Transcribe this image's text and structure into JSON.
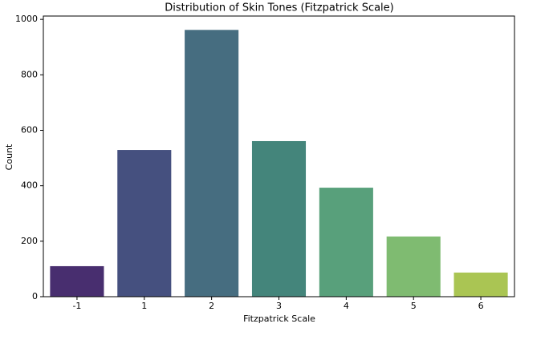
{
  "chart_data": {
    "type": "bar",
    "title": "Distribution of Skin Tones (Fitzpatrick Scale)",
    "x_label": "Fitzpatrick Scale",
    "y_label": "Count",
    "categories": [
      "-1",
      "1",
      "2",
      "3",
      "4",
      "5",
      "6"
    ],
    "values": [
      110,
      529,
      962,
      561,
      393,
      217,
      87
    ],
    "colors": [
      "#482e6f",
      "#45507f",
      "#466d80",
      "#44857b",
      "#58a07b",
      "#7fbb71",
      "#aac553"
    ],
    "ylim": [
      0,
      1012
    ],
    "yticks": [
      0,
      200,
      400,
      600,
      800,
      1000
    ],
    "grid": false
  }
}
